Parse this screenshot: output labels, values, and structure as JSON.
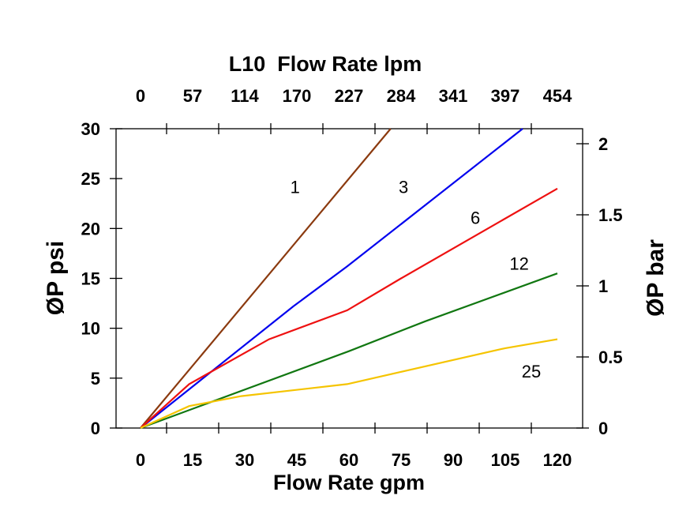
{
  "chart_data": {
    "type": "line",
    "title": "L10  Flow Rate lpm",
    "xlabel": "Flow Rate gpm",
    "ylabel": "ØP psi",
    "y2label": "ØP bar",
    "xlim": [
      -7,
      127
    ],
    "ylim": [
      0,
      30
    ],
    "y2lim": [
      0,
      2.1
    ],
    "grid": false,
    "x_ticks": [
      0,
      15,
      30,
      45,
      60,
      75,
      90,
      105,
      120
    ],
    "x_top_ticks": [
      "0",
      "57",
      "114",
      "170",
      "227",
      "284",
      "341",
      "397",
      "454"
    ],
    "y_ticks": [
      0,
      5,
      10,
      15,
      20,
      25,
      30
    ],
    "y2_ticks": [
      "0",
      "0.5",
      "1",
      "1.5",
      "2"
    ],
    "y2_tick_values": [
      0,
      0.5,
      1,
      1.5,
      2
    ],
    "series": [
      {
        "name": "1",
        "color": "#8B3A0F",
        "points": [
          [
            0,
            0
          ],
          [
            24,
            10
          ],
          [
            48,
            20
          ],
          [
            72,
            30
          ]
        ],
        "label_at": [
          44.5,
          24.2
        ]
      },
      {
        "name": "3",
        "color": "#0000EE",
        "points": [
          [
            0,
            0
          ],
          [
            44,
            12.2
          ],
          [
            59.5,
            16.2
          ],
          [
            110,
            30
          ]
        ],
        "label_at": [
          75.7,
          24.2
        ]
      },
      {
        "name": "6",
        "color": "#EE1111",
        "points": [
          [
            0,
            0
          ],
          [
            14,
            4.4
          ],
          [
            37,
            8.9
          ],
          [
            59.5,
            11.8
          ],
          [
            75,
            15
          ],
          [
            120,
            24
          ]
        ],
        "label_at": [
          96.4,
          21.1
        ]
      },
      {
        "name": "12",
        "color": "#117711",
        "points": [
          [
            0,
            0
          ],
          [
            60,
            7.7
          ],
          [
            82,
            10.7
          ],
          [
            120,
            15.5
          ]
        ],
        "label_at": [
          109,
          16.5
        ]
      },
      {
        "name": "25",
        "color": "#F5C400",
        "points": [
          [
            0,
            0
          ],
          [
            14,
            2.2
          ],
          [
            29,
            3.2
          ],
          [
            59.5,
            4.4
          ],
          [
            105,
            8
          ],
          [
            120,
            8.9
          ]
        ],
        "label_at": [
          112.5,
          5.7
        ]
      }
    ]
  }
}
